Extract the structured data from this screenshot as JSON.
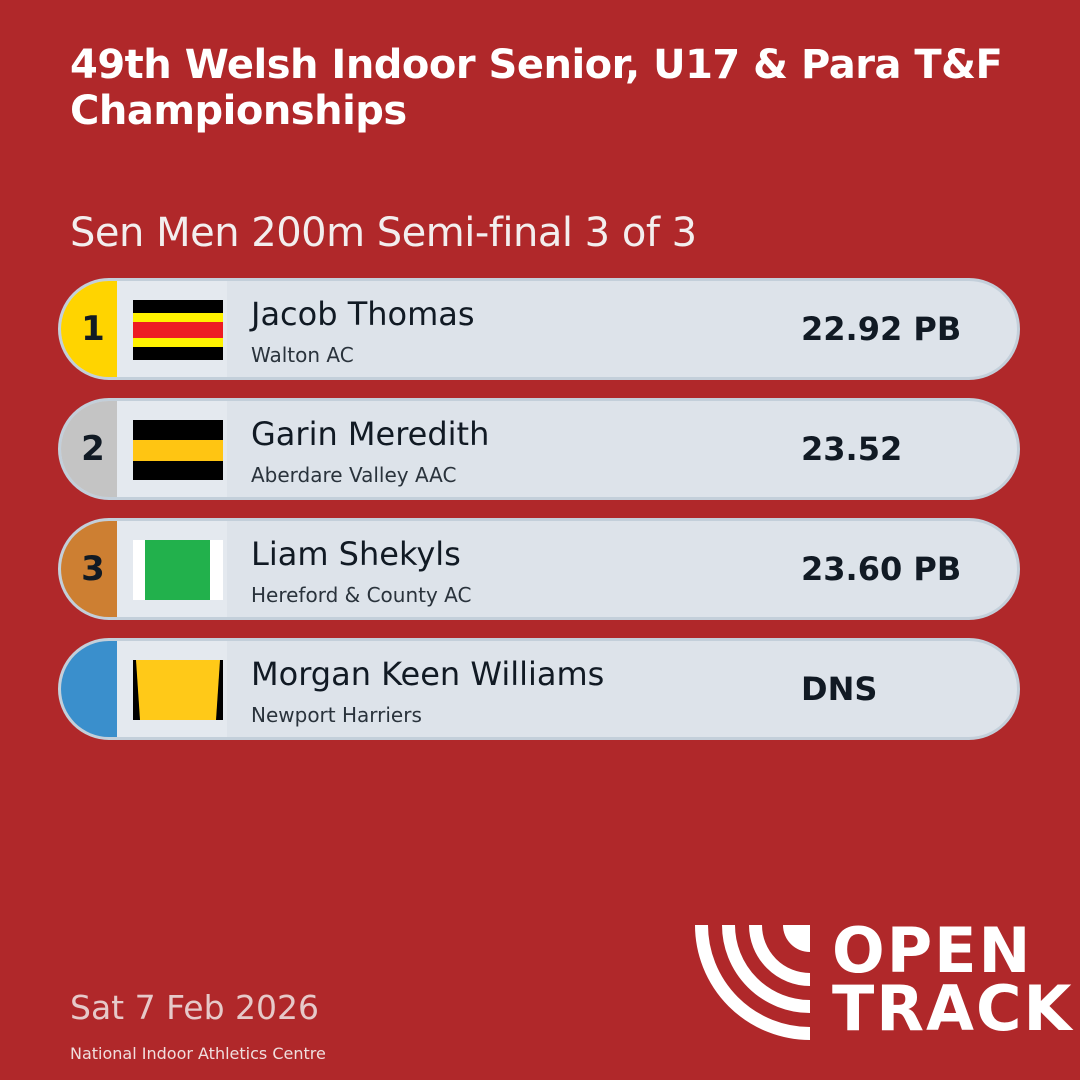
{
  "header": {
    "title": "49th Welsh Indoor Senior, U17 & Para T&F Championships",
    "event": "Sen Men 200m Semi-final 3 of 3"
  },
  "results": [
    {
      "rank": "1",
      "name": "Jacob Thomas",
      "club": "Walton AC",
      "result": "22.92 PB",
      "rank_color": "#ffd400",
      "flag": "walton"
    },
    {
      "rank": "2",
      "name": "Garin Meredith",
      "club": "Aberdare Valley AAC",
      "result": "23.52",
      "rank_color": "#c4c4c4",
      "flag": "aberdare"
    },
    {
      "rank": "3",
      "name": "Liam Shekyls",
      "club": "Hereford & County AC",
      "result": "23.60 PB",
      "rank_color": "#cd7f32",
      "flag": "hereford"
    },
    {
      "rank": "",
      "name": "Morgan Keen Williams",
      "club": "Newport Harriers",
      "result": "DNS",
      "rank_color": "#3a8fcc",
      "flag": "newport"
    }
  ],
  "footer": {
    "date": "Sat 7 Feb 2026",
    "venue": "National Indoor Athletics Centre",
    "logo_text": "OPEN TRACK"
  },
  "colors": {
    "background": "#b0282a",
    "row": "#dde3ea"
  }
}
